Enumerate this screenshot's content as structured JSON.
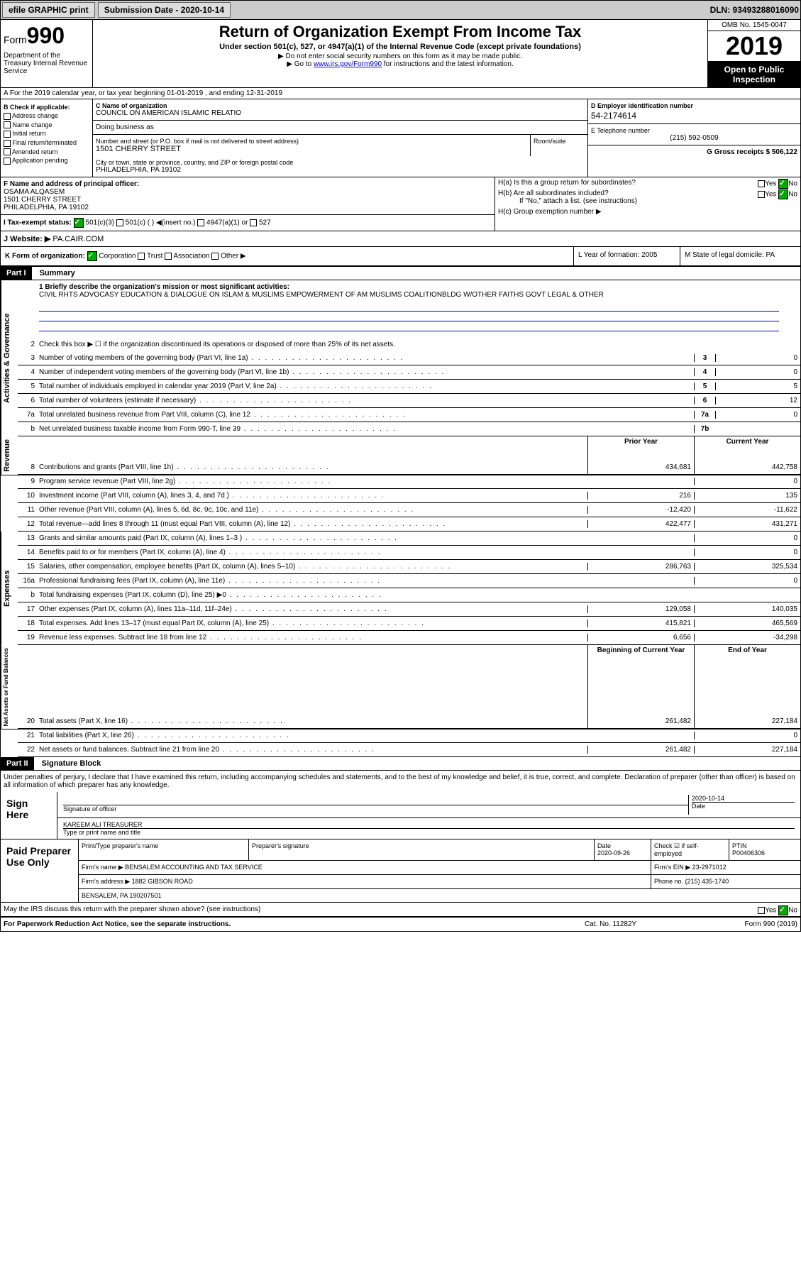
{
  "top": {
    "efile": "efile GRAPHIC print",
    "sub_label": "Submission Date - 2020-10-14",
    "dln": "DLN: 93493288016090"
  },
  "header": {
    "form": "Form",
    "form_num": "990",
    "dept": "Department of the Treasury Internal Revenue Service",
    "title": "Return of Organization Exempt From Income Tax",
    "subtitle": "Under section 501(c), 527, or 4947(a)(1) of the Internal Revenue Code (except private foundations)",
    "note1": "▶ Do not enter social security numbers on this form as it may be made public.",
    "note2_pre": "▶ Go to ",
    "note2_link": "www.irs.gov/Form990",
    "note2_post": " for instructions and the latest information.",
    "omb": "OMB No. 1545-0047",
    "year": "2019",
    "open": "Open to Public Inspection"
  },
  "rowA": "A For the 2019 calendar year, or tax year beginning 01-01-2019    , and ending 12-31-2019",
  "boxB": {
    "label": "B Check if applicable:",
    "items": [
      "Address change",
      "Name change",
      "Initial return",
      "Final return/terminated",
      "Amended return",
      "Application pending"
    ]
  },
  "boxC": {
    "name_label": "C Name of organization",
    "name": "COUNCIL ON AMERICAN ISLAMIC RELATIO",
    "dba": "Doing business as",
    "addr_label": "Number and street (or P.O. box if mail is not delivered to street address)",
    "room": "Room/suite",
    "addr": "1501 CHERRY STREET",
    "city_label": "City or town, state or province, country, and ZIP or foreign postal code",
    "city": "PHILADELPHIA, PA  19102"
  },
  "boxD": {
    "label": "D Employer identification number",
    "ein": "54-2174614"
  },
  "boxE": {
    "label": "E Telephone number",
    "phone": "(215) 592-0509"
  },
  "boxG": {
    "label": "G Gross receipts $ 506,122"
  },
  "boxF": {
    "label": "F Name and address of principal officer:",
    "name": "OSAMA ALQASEM",
    "addr1": "1501 CHERRY STREET",
    "addr2": "PHILADELPHIA, PA  19102"
  },
  "boxH": {
    "ha": "H(a) Is this a group return for subordinates?",
    "hb": "H(b) Are all subordinates included?",
    "hb_note": "If \"No,\" attach a list. (see instructions)",
    "hc": "H(c) Group exemption number ▶",
    "yes": "Yes",
    "no": "No"
  },
  "boxI": {
    "label": "I Tax-exempt status:",
    "opt1": "501(c)(3)",
    "opt2": "501(c) (  ) ◀(insert no.)",
    "opt3": "4947(a)(1) or",
    "opt4": "527"
  },
  "boxJ": {
    "label": "J Website: ▶",
    "url": "PA.CAIR.COM"
  },
  "boxK": {
    "label": "K Form of organization:",
    "corp": "Corporation",
    "trust": "Trust",
    "assoc": "Association",
    "other": "Other ▶"
  },
  "boxL": {
    "label": "L Year of formation: 2005"
  },
  "boxM": {
    "label": "M State of legal domicile: PA"
  },
  "part1": {
    "header": "Part I",
    "title": "Summary",
    "line1": "1 Briefly describe the organization's mission or most significant activities:",
    "mission": "CIVIL RHTS ADVOCASY EDUCATION & DIALOGUE ON ISLAM & MUSLIMS EMPOWERMENT OF AM MUSLIMS COALITIONBLDG W/OTHER FAITHS GOVT LEGAL & OTHER",
    "line2": "Check this box ▶ ☐ if the organization discontinued its operations or disposed of more than 25% of its net assets.",
    "labels": {
      "gov": "Activities & Governance",
      "rev": "Revenue",
      "exp": "Expenses",
      "net": "Net Assets or Fund Balances"
    },
    "lines": [
      {
        "n": "3",
        "d": "Number of voting members of the governing body (Part VI, line 1a)",
        "b": "3",
        "v": "0"
      },
      {
        "n": "4",
        "d": "Number of independent voting members of the governing body (Part VI, line 1b)",
        "b": "4",
        "v": "0"
      },
      {
        "n": "5",
        "d": "Total number of individuals employed in calendar year 2019 (Part V, line 2a)",
        "b": "5",
        "v": "5"
      },
      {
        "n": "6",
        "d": "Total number of volunteers (estimate if necessary)",
        "b": "6",
        "v": "12"
      },
      {
        "n": "7a",
        "d": "Total unrelated business revenue from Part VIII, column (C), line 12",
        "b": "7a",
        "v": "0"
      },
      {
        "n": "b",
        "d": "Net unrelated business taxable income from Form 990-T, line 39",
        "b": "7b",
        "v": ""
      }
    ],
    "col_py": "Prior Year",
    "col_cy": "Current Year",
    "rev_lines": [
      {
        "n": "8",
        "d": "Contributions and grants (Part VIII, line 1h)",
        "py": "434,681",
        "cy": "442,758"
      },
      {
        "n": "9",
        "d": "Program service revenue (Part VIII, line 2g)",
        "py": "",
        "cy": "0"
      },
      {
        "n": "10",
        "d": "Investment income (Part VIII, column (A), lines 3, 4, and 7d )",
        "py": "216",
        "cy": "135"
      },
      {
        "n": "11",
        "d": "Other revenue (Part VIII, column (A), lines 5, 6d, 8c, 9c, 10c, and 11e)",
        "py": "-12,420",
        "cy": "-11,622"
      },
      {
        "n": "12",
        "d": "Total revenue—add lines 8 through 11 (must equal Part VIII, column (A), line 12)",
        "py": "422,477",
        "cy": "431,271"
      }
    ],
    "exp_lines": [
      {
        "n": "13",
        "d": "Grants and similar amounts paid (Part IX, column (A), lines 1–3 )",
        "py": "",
        "cy": "0"
      },
      {
        "n": "14",
        "d": "Benefits paid to or for members (Part IX, column (A), line 4)",
        "py": "",
        "cy": "0"
      },
      {
        "n": "15",
        "d": "Salaries, other compensation, employee benefits (Part IX, column (A), lines 5–10)",
        "py": "286,763",
        "cy": "325,534"
      },
      {
        "n": "16a",
        "d": "Professional fundraising fees (Part IX, column (A), line 11e)",
        "py": "",
        "cy": "0"
      },
      {
        "n": "b",
        "d": "Total fundraising expenses (Part IX, column (D), line 25) ▶0",
        "py": "gray",
        "cy": "gray"
      },
      {
        "n": "17",
        "d": "Other expenses (Part IX, column (A), lines 11a–11d, 11f–24e)",
        "py": "129,058",
        "cy": "140,035"
      },
      {
        "n": "18",
        "d": "Total expenses. Add lines 13–17 (must equal Part IX, column (A), line 25)",
        "py": "415,821",
        "cy": "465,569"
      },
      {
        "n": "19",
        "d": "Revenue less expenses. Subtract line 18 from line 12",
        "py": "6,656",
        "cy": "-34,298"
      }
    ],
    "col_by": "Beginning of Current Year",
    "col_ey": "End of Year",
    "net_lines": [
      {
        "n": "20",
        "d": "Total assets (Part X, line 16)",
        "py": "261,482",
        "cy": "227,184"
      },
      {
        "n": "21",
        "d": "Total liabilities (Part X, line 26)",
        "py": "",
        "cy": "0"
      },
      {
        "n": "22",
        "d": "Net assets or fund balances. Subtract line 21 from line 20",
        "py": "261,482",
        "cy": "227,184"
      }
    ]
  },
  "part2": {
    "header": "Part II",
    "title": "Signature Block",
    "decl": "Under penalties of perjury, I declare that I have examined this return, including accompanying schedules and statements, and to the best of my knowledge and belief, it is true, correct, and complete. Declaration of preparer (other than officer) is based on all information of which preparer has any knowledge.",
    "sign_here": "Sign Here",
    "sig_officer": "Signature of officer",
    "sig_date": "2020-10-14",
    "date_label": "Date",
    "name_title": "KAREEM ALI TREASURER",
    "name_title_label": "Type or print name and title",
    "paid": "Paid Preparer Use Only",
    "prep_name_label": "Print/Type preparer's name",
    "prep_sig_label": "Preparer's signature",
    "prep_date": "2020-09-26",
    "check_se": "Check ☑ if self-employed",
    "ptin_label": "PTIN",
    "ptin": "P00406306",
    "firm_name_label": "Firm's name ▶",
    "firm_name": "BENSALEM ACCOUNTING AND TAX SERVICE",
    "firm_ein_label": "Firm's EIN ▶",
    "firm_ein": "23-2971012",
    "firm_addr_label": "Firm's address ▶",
    "firm_addr1": "1882 GIBSON ROAD",
    "firm_addr2": "BENSALEM, PA  190207501",
    "firm_phone_label": "Phone no.",
    "firm_phone": "(215) 435-1740",
    "discuss": "May the IRS discuss this return with the preparer shown above? (see instructions)"
  },
  "footer": {
    "pra": "For Paperwork Reduction Act Notice, see the separate instructions.",
    "cat": "Cat. No. 11282Y",
    "form": "Form 990 (2019)"
  }
}
